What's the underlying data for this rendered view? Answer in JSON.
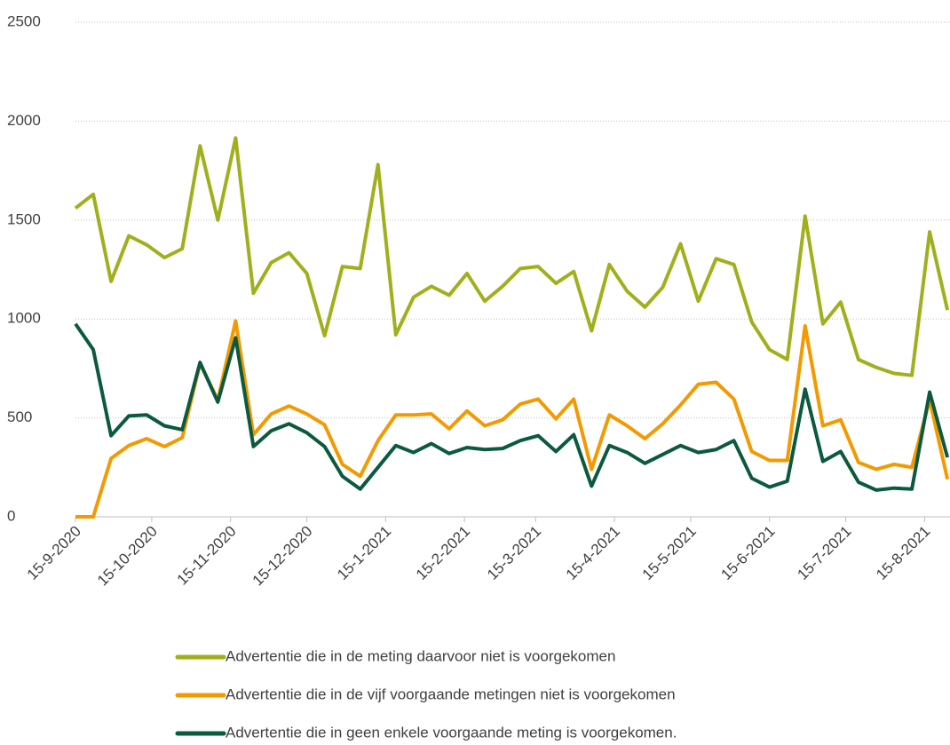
{
  "chart_data": {
    "type": "line",
    "x": [
      "15-9-2020",
      "22-9-2020",
      "29-9-2020",
      "6-10-2020",
      "13-10-2020",
      "20-10-2020",
      "27-10-2020",
      "3-11-2020",
      "10-11-2020",
      "17-11-2020",
      "24-11-2020",
      "1-12-2020",
      "8-12-2020",
      "15-12-2020",
      "22-12-2020",
      "29-12-2020",
      "5-1-2021",
      "12-1-2021",
      "19-1-2021",
      "26-1-2021",
      "2-2-2021",
      "9-2-2021",
      "16-2-2021",
      "23-2-2021",
      "2-3-2021",
      "9-3-2021",
      "16-3-2021",
      "23-3-2021",
      "30-3-2021",
      "6-4-2021",
      "13-4-2021",
      "20-4-2021",
      "27-4-2021",
      "4-5-2021",
      "11-5-2021",
      "18-5-2021",
      "25-5-2021",
      "1-6-2021",
      "8-6-2021",
      "15-6-2021",
      "22-6-2021",
      "29-6-2021",
      "6-7-2021",
      "13-7-2021",
      "20-7-2021",
      "27-7-2021",
      "3-8-2021",
      "10-8-2021",
      "17-8-2021",
      "24-8-2021"
    ],
    "series": [
      {
        "name": "Advertentie die in de meting daarvoor niet is voorgekomen",
        "color": "#a0b01c",
        "values": [
          1560,
          1630,
          1190,
          1420,
          1375,
          1310,
          1355,
          1875,
          1500,
          1915,
          1130,
          1285,
          1335,
          1230,
          915,
          1265,
          1255,
          1780,
          920,
          1110,
          1165,
          1120,
          1230,
          1090,
          1165,
          1255,
          1265,
          1180,
          1240,
          940,
          1275,
          1140,
          1060,
          1160,
          1380,
          1090,
          1305,
          1275,
          985,
          845,
          795,
          1520,
          975,
          1085,
          795,
          755,
          725,
          715,
          1440,
          1045
        ]
      },
      {
        "name": "Advertentie die in de vijf voorgaande metingen niet is voorgekomen",
        "color": "#f29a00",
        "values": [
          0,
          0,
          295,
          360,
          395,
          355,
          400,
          775,
          590,
          990,
          415,
          520,
          560,
          520,
          465,
          265,
          205,
          385,
          515,
          515,
          520,
          445,
          535,
          460,
          490,
          570,
          595,
          495,
          595,
          240,
          515,
          460,
          395,
          470,
          565,
          670,
          680,
          595,
          330,
          285,
          285,
          965,
          460,
          490,
          275,
          240,
          265,
          250,
          590,
          190
        ]
      },
      {
        "name": "Advertentie die in geen enkele voorgaande meting is voorgekomen.",
        "color": "#0b5a3e",
        "values": [
          975,
          845,
          410,
          510,
          515,
          460,
          440,
          780,
          580,
          905,
          355,
          435,
          470,
          425,
          355,
          205,
          140,
          250,
          360,
          325,
          370,
          320,
          350,
          340,
          345,
          385,
          410,
          330,
          415,
          155,
          360,
          325,
          270,
          315,
          360,
          325,
          340,
          385,
          195,
          150,
          180,
          645,
          280,
          330,
          175,
          135,
          145,
          140,
          630,
          300
        ]
      }
    ],
    "xlim": [
      "15-9-2020",
      "25-8-2021"
    ],
    "xticks": [
      "15-9-2020",
      "15-10-2020",
      "15-11-2020",
      "15-12-2020",
      "15-1-2021",
      "15-2-2021",
      "15-3-2021",
      "15-4-2021",
      "15-5-2021",
      "15-6-2021",
      "15-7-2021",
      "15-8-2021"
    ],
    "ylim": [
      0,
      2500
    ],
    "yticks": [
      0,
      500,
      1000,
      1500,
      2000,
      2500
    ],
    "grid": true,
    "legend": "bottom"
  }
}
